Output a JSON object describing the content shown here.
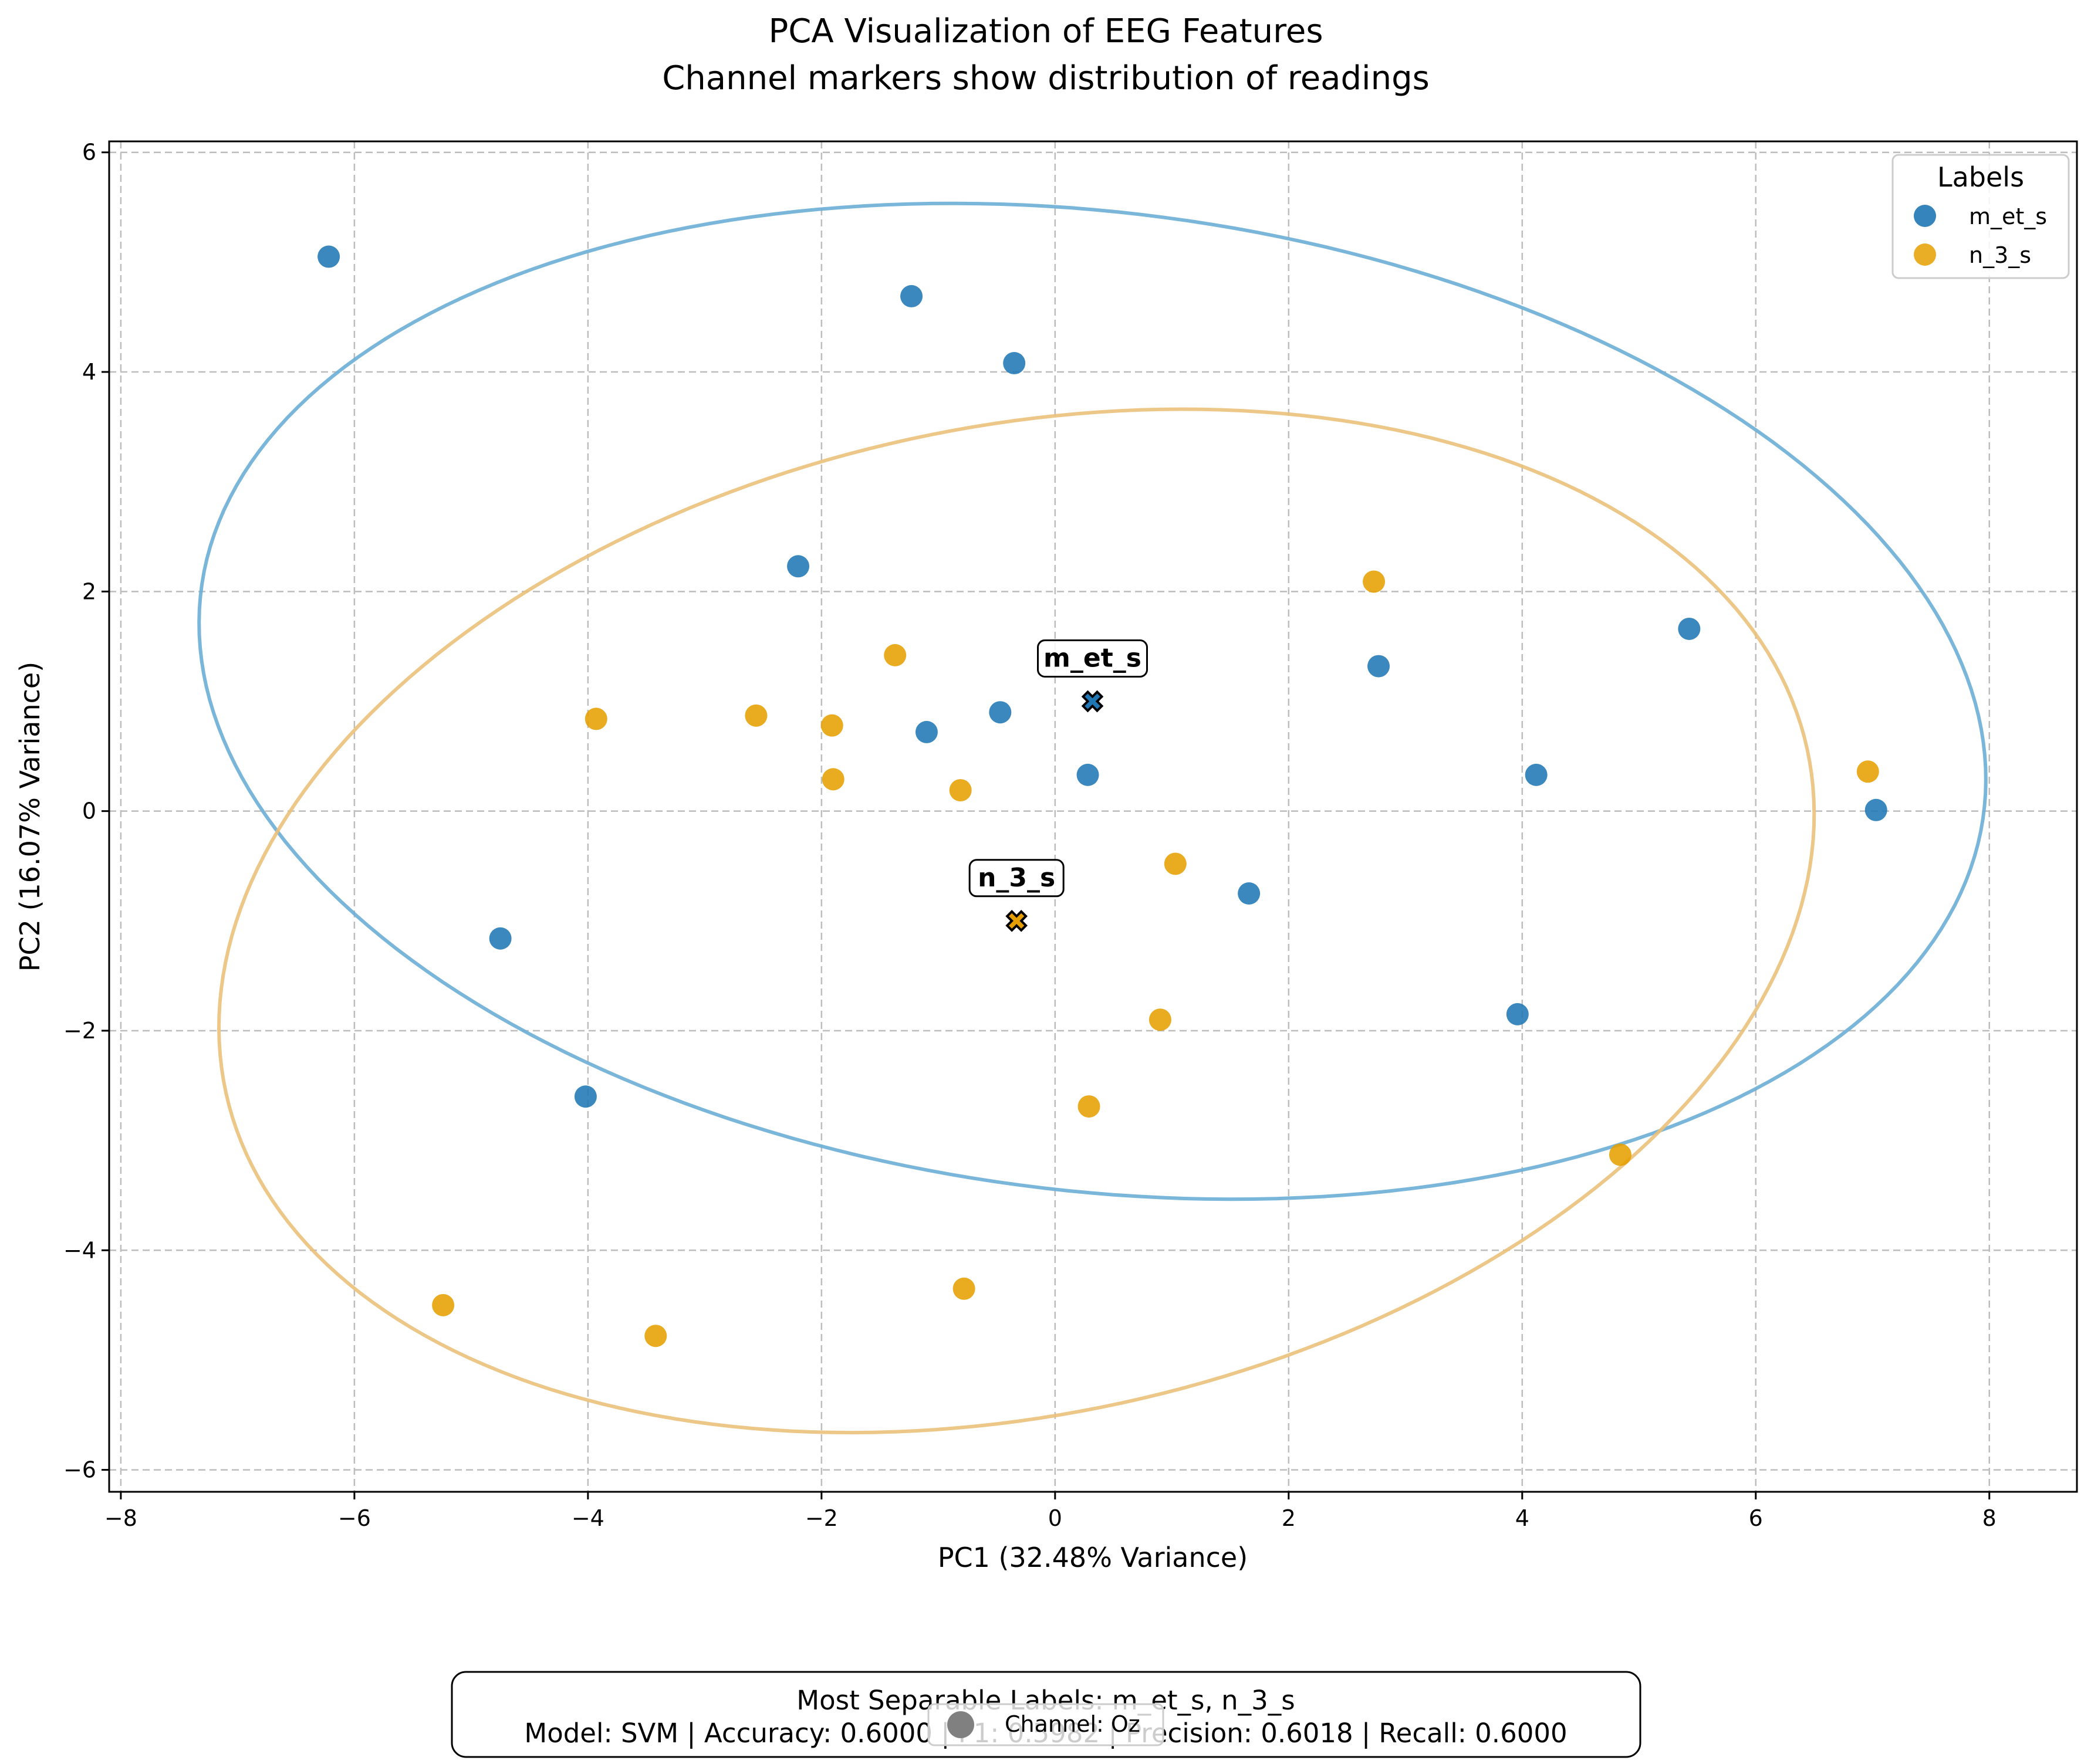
{
  "chart_data": {
    "type": "scatter",
    "title": "PCA Visualization of EEG Features",
    "subtitle": "Channel markers show distribution of readings",
    "xlabel": "PC1 (32.48% Variance)",
    "ylabel": "PC2 (16.07% Variance)",
    "xlim": [
      -8.1,
      8.75
    ],
    "ylim": [
      -6.2,
      6.1
    ],
    "xticks": [
      -8,
      -6,
      -4,
      -2,
      0,
      2,
      4,
      6,
      8
    ],
    "yticks": [
      -6,
      -4,
      -2,
      0,
      2,
      4,
      6
    ],
    "grid": true,
    "legend": {
      "title": "Labels",
      "placement": "top-right"
    },
    "series": [
      {
        "name": "m_et_s",
        "color": "#1f77b4",
        "ellipse_color": "#6baed6",
        "points": [
          [
            -6.22,
            5.05
          ],
          [
            -1.23,
            4.69
          ],
          [
            -0.35,
            4.08
          ],
          [
            -2.2,
            2.23
          ],
          [
            -1.1,
            0.72
          ],
          [
            -0.47,
            0.9
          ],
          [
            0.28,
            0.33
          ],
          [
            2.77,
            1.32
          ],
          [
            5.43,
            1.66
          ],
          [
            4.12,
            0.33
          ],
          [
            7.03,
            0.01
          ],
          [
            1.66,
            -0.75
          ],
          [
            3.96,
            -1.85
          ],
          [
            -4.75,
            -1.16
          ],
          [
            -4.02,
            -2.6
          ]
        ],
        "centroid": [
          0.32,
          1.0
        ],
        "ellipse": {
          "center": [
            0.32,
            1.0
          ],
          "semi_major": 7.7,
          "semi_minor": 4.45,
          "angle_deg": -8
        }
      },
      {
        "name": "n_3_s",
        "color": "#e69f00",
        "ellipse_color": "#eac17a",
        "points": [
          [
            -3.93,
            0.84
          ],
          [
            -2.56,
            0.87
          ],
          [
            -1.91,
            0.78
          ],
          [
            -1.37,
            1.42
          ],
          [
            -1.9,
            0.29
          ],
          [
            -0.81,
            0.19
          ],
          [
            2.73,
            2.09
          ],
          [
            6.96,
            0.36
          ],
          [
            1.03,
            -0.48
          ],
          [
            0.9,
            -1.9
          ],
          [
            0.29,
            -2.69
          ],
          [
            4.84,
            -3.13
          ],
          [
            -0.78,
            -4.35
          ],
          [
            -5.24,
            -4.5
          ],
          [
            -3.42,
            -4.78
          ]
        ],
        "centroid": [
          -0.33,
          -1.0
        ],
        "ellipse": {
          "center": [
            -0.33,
            -1.0
          ],
          "semi_major": 6.95,
          "semi_minor": 4.48,
          "angle_deg": 14
        }
      }
    ],
    "centroid_labels": [
      "m_et_s",
      "n_3_s"
    ],
    "channel_legend": "Channel: Oz",
    "footer": {
      "line1": "Most Separable Labels: m_et_s, n_3_s",
      "line2": "Model: SVM | Accuracy: 0.6000 | F1: 0.5982 | Precision: 0.6018 | Recall: 0.6000"
    }
  }
}
